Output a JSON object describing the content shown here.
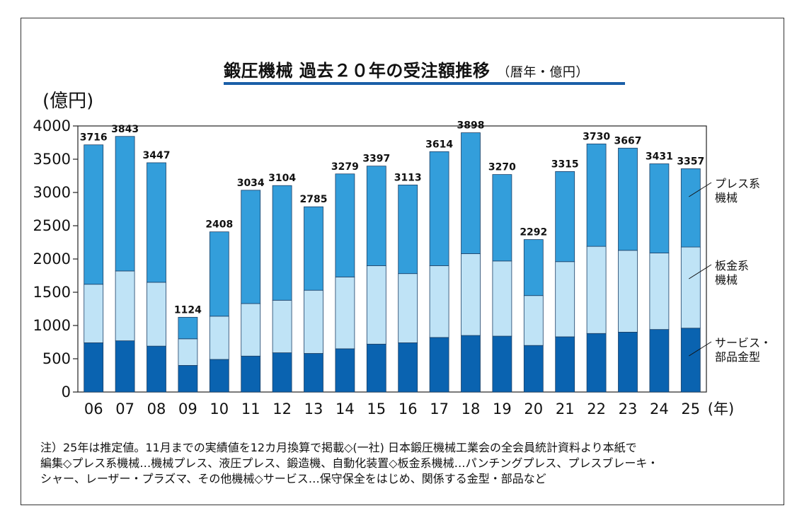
{
  "title": "鍛圧機械 過去２０年の受注額推移",
  "subtitle": "（暦年・億円）",
  "unit": "(億円)",
  "colors": {
    "press": "#339edb",
    "sheet": "#bfe3f6",
    "service": "#0a63b0",
    "title_rule": "#1a5fa8"
  },
  "legend": {
    "press": [
      "プレス系",
      "機械"
    ],
    "sheet": [
      "板金系",
      "機械"
    ],
    "service": [
      "サービス・",
      "部品金型"
    ]
  },
  "chart_data": {
    "type": "bar",
    "stacked": true,
    "title": "鍛圧機械 過去２０年の受注額推移",
    "ylabel": "(億円)",
    "xlabel": "(年)",
    "ylim": [
      0,
      4000
    ],
    "yticks": [
      0,
      500,
      1000,
      1500,
      2000,
      2500,
      3000,
      3500,
      4000
    ],
    "categories": [
      "06",
      "07",
      "08",
      "09",
      "10",
      "11",
      "12",
      "13",
      "14",
      "15",
      "16",
      "17",
      "18",
      "19",
      "20",
      "21",
      "22",
      "23",
      "24",
      "25"
    ],
    "totals": [
      3716,
      3843,
      3447,
      1124,
      2408,
      3034,
      3104,
      2785,
      3279,
      3397,
      3113,
      3614,
      3898,
      3270,
      2292,
      3315,
      3730,
      3667,
      3431,
      3357
    ],
    "series": [
      {
        "name": "サービス・部品金型",
        "key": "service",
        "values": [
          740,
          770,
          690,
          400,
          490,
          540,
          590,
          580,
          650,
          720,
          740,
          820,
          850,
          840,
          700,
          830,
          880,
          900,
          940,
          960
        ]
      },
      {
        "name": "板金系機械",
        "key": "sheet",
        "values": [
          880,
          1050,
          960,
          400,
          650,
          790,
          790,
          950,
          1080,
          1180,
          1040,
          1080,
          1230,
          1130,
          750,
          1130,
          1310,
          1230,
          1150,
          1220
        ]
      },
      {
        "name": "プレス系機械",
        "key": "press",
        "values": [
          2096,
          2023,
          1797,
          324,
          1268,
          1704,
          1724,
          1255,
          1549,
          1497,
          1333,
          1714,
          1818,
          1300,
          842,
          1355,
          1540,
          1537,
          1341,
          1177
        ]
      }
    ]
  },
  "notes": [
    "注）25年は推定値。11月までの実績値を12カ月換算で掲載◇(一社) 日本鍛圧機械工業会の全会員統計資料より本紙で",
    "編集◇プレス系機械…機械プレス、液圧プレス、鍛造機、自動化装置◇板金系機械…パンチングプレス、プレスブレーキ・",
    "シャー、レーザー・プラズマ、その他機械◇サービス…保守保全をはじめ、関係する金型・部品など"
  ]
}
